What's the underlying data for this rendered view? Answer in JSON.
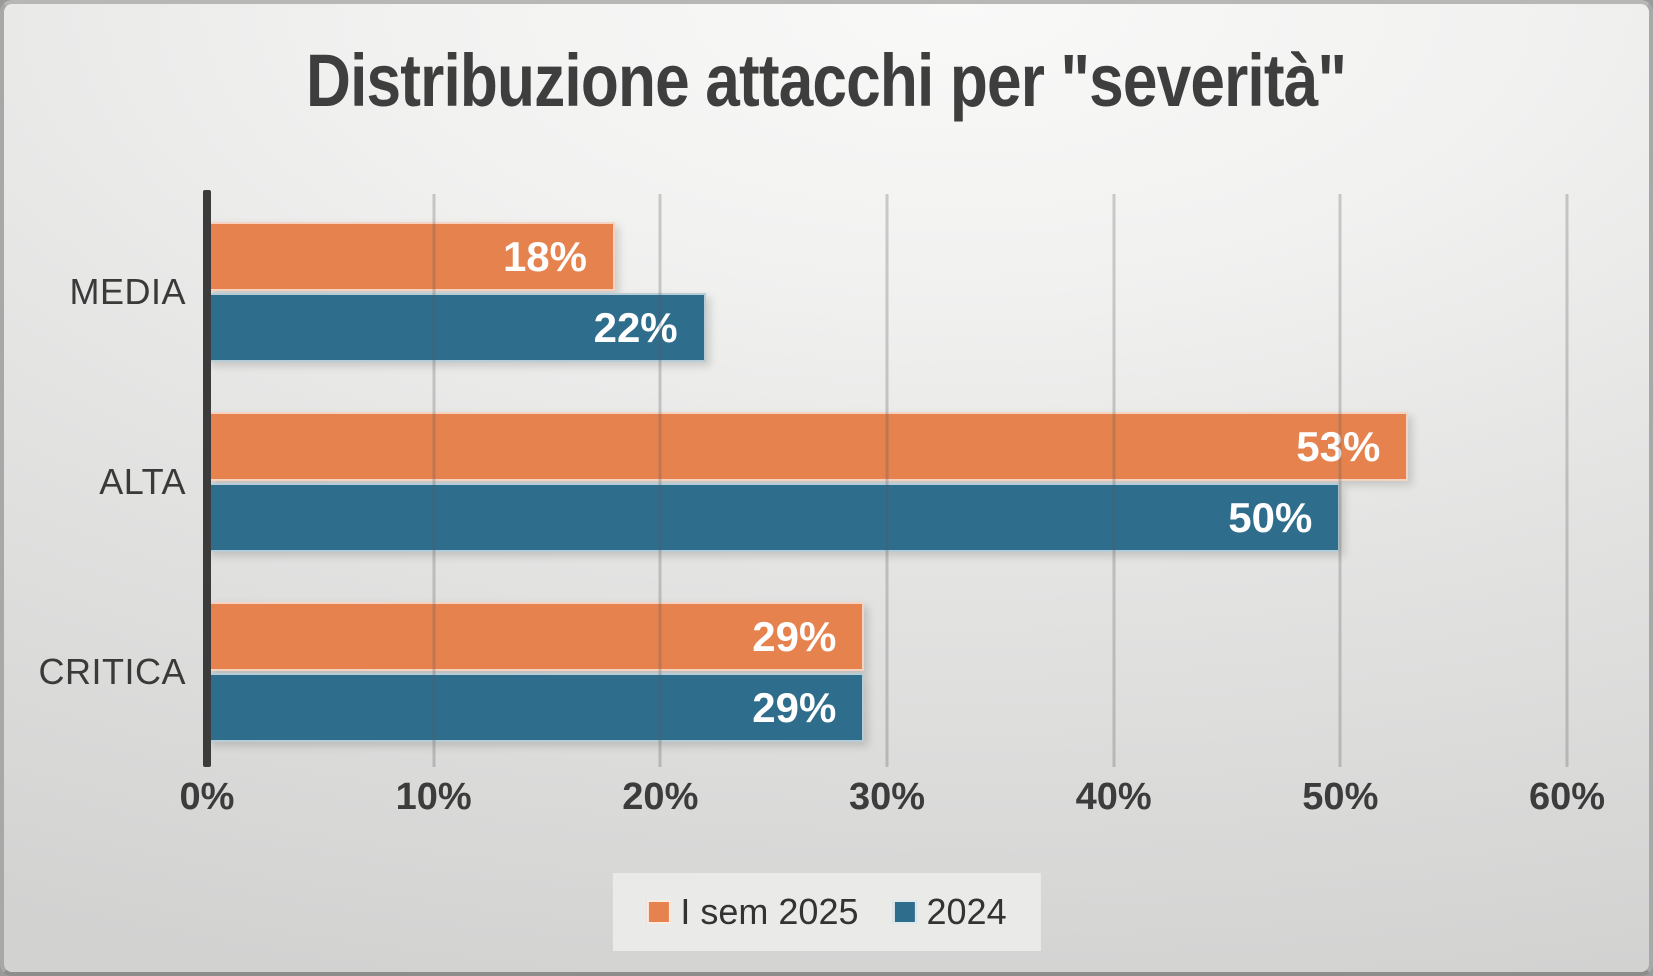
{
  "chart_data": {
    "type": "bar",
    "orientation": "horizontal",
    "title": "Distribuzione attacchi per \"severità\"",
    "categories": [
      "MEDIA",
      "ALTA",
      "CRITICA"
    ],
    "series": [
      {
        "name": "I sem 2025",
        "color": "#E6824E",
        "values": [
          18,
          53,
          29
        ],
        "labels": [
          "18%",
          "53%",
          "29%"
        ]
      },
      {
        "name": "2024",
        "color": "#2E6D8C",
        "values": [
          22,
          50,
          29
        ],
        "labels": [
          "22%",
          "50%",
          "29%"
        ]
      }
    ],
    "x_axis": {
      "min": 0,
      "max": 60,
      "tick_step": 10,
      "ticks": [
        "0%",
        "10%",
        "20%",
        "30%",
        "40%",
        "50%",
        "60%"
      ]
    },
    "grid": true,
    "value_labels": "inside-end",
    "legend_position": "bottom"
  }
}
